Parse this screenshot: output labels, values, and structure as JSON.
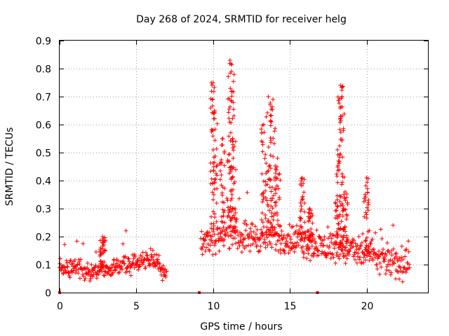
{
  "chart_data": {
    "type": "scatter",
    "title": "Day 268 of 2024, SRMTID for receiver helg",
    "xlabel": "GPS time / hours",
    "ylabel": "SRMTID / TECUs",
    "xlim": [
      0,
      24
    ],
    "ylim": [
      0,
      0.9
    ],
    "xticks": [
      0,
      5,
      10,
      15,
      20
    ],
    "yticks": [
      0,
      0.1,
      0.2,
      0.3,
      0.4,
      0.5,
      0.6,
      0.7,
      0.8,
      0.9
    ],
    "grid": true,
    "marker": "plus",
    "color": "#ff0000",
    "zero_markers_x": [
      0,
      9.1,
      16.8
    ],
    "segments": [
      {
        "x_start": 0.0,
        "x_end": 7.0,
        "baseline": [
          [
            0,
            0.08
          ],
          [
            1,
            0.09
          ],
          [
            2,
            0.08
          ],
          [
            3,
            0.08
          ],
          [
            4,
            0.09
          ],
          [
            5,
            0.11
          ],
          [
            6,
            0.12
          ],
          [
            7,
            0.07
          ]
        ],
        "spread": 0.025
      },
      {
        "x_start": 9.2,
        "x_end": 22.8,
        "baseline": [
          [
            9.2,
            0.18
          ],
          [
            10,
            0.2
          ],
          [
            11,
            0.22
          ],
          [
            12,
            0.2
          ],
          [
            13,
            0.2
          ],
          [
            14,
            0.2
          ],
          [
            15,
            0.19
          ],
          [
            16,
            0.18
          ],
          [
            17,
            0.16
          ],
          [
            18,
            0.17
          ],
          [
            19,
            0.15
          ],
          [
            20,
            0.14
          ],
          [
            21,
            0.12
          ],
          [
            22,
            0.1
          ],
          [
            22.8,
            0.11
          ]
        ],
        "spread": 0.04
      }
    ],
    "peaks": [
      {
        "x": 2.8,
        "y": 0.2
      },
      {
        "x": 10.0,
        "y": 0.75
      },
      {
        "x": 10.1,
        "y": 0.65
      },
      {
        "x": 10.6,
        "y": 0.55
      },
      {
        "x": 11.1,
        "y": 0.83
      },
      {
        "x": 11.2,
        "y": 0.79
      },
      {
        "x": 11.3,
        "y": 0.54
      },
      {
        "x": 13.3,
        "y": 0.6
      },
      {
        "x": 13.6,
        "y": 0.7
      },
      {
        "x": 13.9,
        "y": 0.69
      },
      {
        "x": 14.2,
        "y": 0.48
      },
      {
        "x": 15.8,
        "y": 0.41
      },
      {
        "x": 16.3,
        "y": 0.3
      },
      {
        "x": 18.1,
        "y": 0.51
      },
      {
        "x": 18.3,
        "y": 0.74
      },
      {
        "x": 18.4,
        "y": 0.7
      },
      {
        "x": 18.6,
        "y": 0.36
      },
      {
        "x": 20.0,
        "y": 0.41
      }
    ]
  }
}
